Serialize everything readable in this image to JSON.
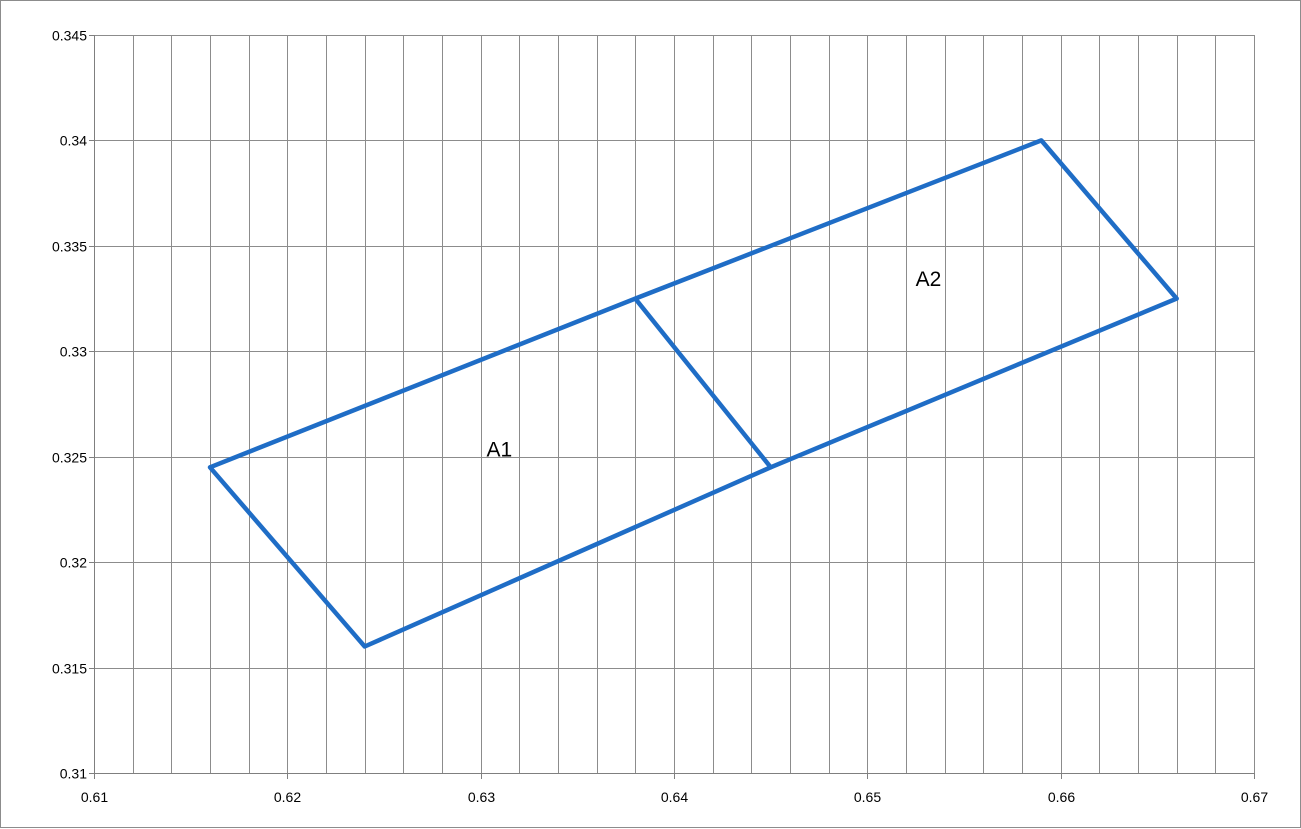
{
  "chart_data": {
    "type": "scatter",
    "title": "",
    "xlabel": "",
    "ylabel": "",
    "xlim": [
      0.61,
      0.67
    ],
    "ylim": [
      0.31,
      0.345
    ],
    "x_major_ticks": [
      "0.61",
      "0.62",
      "0.63",
      "0.64",
      "0.65",
      "0.66",
      "0.67"
    ],
    "y_major_ticks": [
      "0.31",
      "0.315",
      "0.32",
      "0.325",
      "0.33",
      "0.335",
      "0.34",
      "0.345"
    ],
    "x_minor_step": 0.002,
    "grid": true,
    "legend": "none",
    "series": [
      {
        "color": "#1f6dc6",
        "points": [
          {
            "x": 0.616,
            "y": 0.3245
          },
          {
            "x": 0.638,
            "y": 0.3325
          },
          {
            "x": 0.659,
            "y": 0.34
          },
          {
            "x": 0.666,
            "y": 0.3325
          },
          {
            "x": 0.645,
            "y": 0.3245
          },
          {
            "x": 0.624,
            "y": 0.316
          },
          {
            "x": 0.616,
            "y": 0.3245
          }
        ]
      },
      {
        "color": "#1f6dc6",
        "points": [
          {
            "x": 0.638,
            "y": 0.3325
          },
          {
            "x": 0.645,
            "y": 0.3245
          }
        ]
      }
    ],
    "annotations": [
      {
        "text": "A1",
        "x": 0.6303,
        "y": 0.325
      },
      {
        "text": "A2",
        "x": 0.6525,
        "y": 0.3331
      }
    ]
  }
}
